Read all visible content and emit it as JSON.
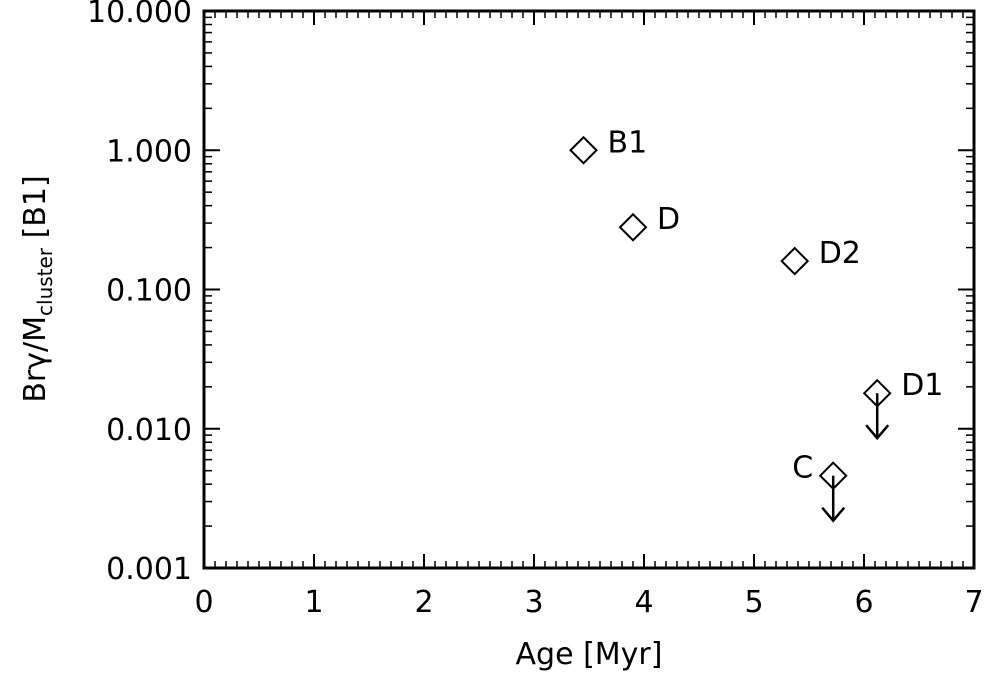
{
  "chart_data": {
    "type": "scatter",
    "title": "",
    "xlabel": "Age [Myr]",
    "ylabel": "Brγ/M_cluster [B1]",
    "ylabel_parts": {
      "main": "Brγ/M",
      "sub": "cluster",
      "suffix": " [B1]"
    },
    "xlim": [
      0,
      7
    ],
    "ylim": [
      0.001,
      10
    ],
    "yscale": "log",
    "x_ticks": [
      "0",
      "1",
      "2",
      "3",
      "4",
      "5",
      "6",
      "7"
    ],
    "y_ticks": [
      "0.001",
      "0.010",
      "0.100",
      "1.000",
      "10.000"
    ],
    "marker": "diamond",
    "grid": false,
    "points": [
      {
        "label": "B1",
        "x": 3.45,
        "y": 1.0,
        "upper_limit": false,
        "label_side": "right"
      },
      {
        "label": "D",
        "x": 3.9,
        "y": 0.28,
        "upper_limit": false,
        "label_side": "right"
      },
      {
        "label": "D2",
        "x": 5.37,
        "y": 0.16,
        "upper_limit": false,
        "label_side": "right"
      },
      {
        "label": "D1",
        "x": 6.12,
        "y": 0.018,
        "upper_limit": true,
        "label_side": "right"
      },
      {
        "label": "C",
        "x": 5.72,
        "y": 0.0046,
        "upper_limit": true,
        "label_side": "left"
      }
    ]
  }
}
